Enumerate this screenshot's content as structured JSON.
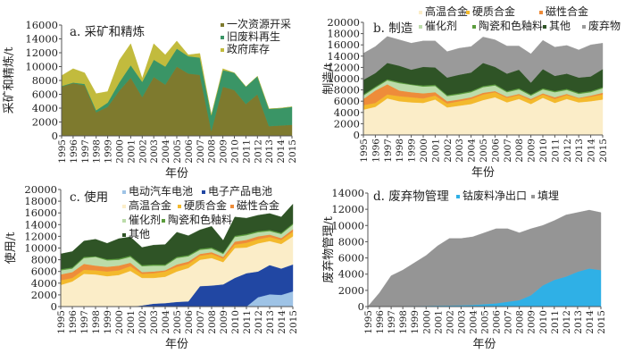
{
  "chart_data": [
    {
      "id": "a",
      "type": "area",
      "stacked": true,
      "title": "a. 采矿和精炼",
      "xlabel": "年份",
      "ylabel": "采矿和精炼/t",
      "ylim": [
        0,
        16000
      ],
      "yticks": [
        "0",
        "2000",
        "4000",
        "6000",
        "8000",
        "10000",
        "12000",
        "14000",
        "16000"
      ],
      "x": [
        "1995",
        "1996",
        "1997",
        "1998",
        "1999",
        "2000",
        "2001",
        "2002",
        "2003",
        "2004",
        "2005",
        "2006",
        "2007",
        "2008",
        "2009",
        "2010",
        "2011",
        "2012",
        "2013",
        "2014",
        "2015"
      ],
      "legend_position": "top-right",
      "series": [
        {
          "name": "一次资源开采",
          "color": "#7e7a2e",
          "values": [
            7100,
            7600,
            7300,
            3400,
            4200,
            6500,
            8400,
            5600,
            8500,
            7400,
            10000,
            9000,
            8800,
            700,
            7100,
            6600,
            4600,
            6000,
            1400,
            1500,
            1600
          ]
        },
        {
          "name": "旧废料再生",
          "color": "#3a9566",
          "values": [
            100,
            100,
            200,
            300,
            600,
            1200,
            1800,
            2200,
            2500,
            2600,
            2600,
            2500,
            2500,
            2300,
            2400,
            2500,
            2500,
            2600,
            2500,
            2500,
            2600
          ]
        },
        {
          "name": "政府库存",
          "color": "#c2bb3d",
          "values": [
            1500,
            2000,
            1600,
            2400,
            1600,
            3200,
            3100,
            500,
            2300,
            1700,
            1100,
            200,
            600,
            0,
            200,
            0,
            0,
            0,
            0,
            0,
            0
          ]
        }
      ]
    },
    {
      "id": "b",
      "type": "area",
      "stacked": true,
      "title": "b. 制造",
      "xlabel": "年份",
      "ylabel": "制造/t",
      "ylim": [
        0,
        20000
      ],
      "yticks": [
        "0",
        "2000",
        "4000",
        "6000",
        "8000",
        "10000",
        "12000",
        "14000",
        "16000",
        "18000",
        "20000"
      ],
      "x": [
        "1995",
        "1996",
        "1997",
        "1998",
        "1999",
        "2000",
        "2001",
        "2002",
        "2003",
        "2004",
        "2005",
        "2006",
        "2007",
        "2008",
        "2009",
        "2010",
        "2011",
        "2012",
        "2013",
        "2014",
        "2015"
      ],
      "legend_position": "top",
      "series": [
        {
          "name": "高温合金",
          "color": "#fbedc8",
          "values": [
            4500,
            5000,
            6500,
            6000,
            5800,
            5700,
            6300,
            4900,
            5200,
            5500,
            6200,
            6700,
            5800,
            6400,
            5500,
            6600,
            5700,
            6400,
            5800,
            6000,
            6300
          ]
        },
        {
          "name": "硬质合金",
          "color": "#f3b92c",
          "values": [
            800,
            700,
            700,
            900,
            900,
            800,
            700,
            700,
            800,
            900,
            1000,
            900,
            800,
            700,
            700,
            600,
            700,
            700,
            700,
            800,
            900
          ]
        },
        {
          "name": "磁性合金",
          "color": "#ee8c3a",
          "values": [
            1100,
            2200,
            1800,
            1000,
            900,
            900,
            600,
            400,
            300,
            300,
            300,
            200,
            200,
            200,
            200,
            200,
            300,
            200,
            100,
            200,
            300
          ]
        },
        {
          "name": "催化剂",
          "color": "#bcdcaa",
          "values": [
            600,
            500,
            700,
            1300,
            1300,
            1200,
            1100,
            900,
            900,
            900,
            1000,
            1000,
            800,
            800,
            600,
            700,
            900,
            700,
            700,
            600,
            800
          ]
        },
        {
          "name": "陶瓷和色釉料",
          "color": "#5a9c3c",
          "values": [
            200,
            200,
            200,
            200,
            100,
            200,
            200,
            200,
            200,
            200,
            200,
            200,
            200,
            200,
            200,
            200,
            200,
            200,
            200,
            200,
            200
          ]
        },
        {
          "name": "其他",
          "color": "#2f5426",
          "values": [
            2600,
            2400,
            2900,
            2900,
            2600,
            3300,
            3100,
            3100,
            3300,
            3300,
            4100,
            3100,
            3100,
            3300,
            2100,
            3400,
            2700,
            2700,
            2700,
            2600,
            3200
          ]
        },
        {
          "name": "废弃物",
          "color": "#9a9a9a",
          "values": [
            4700,
            4700,
            4700,
            4600,
            4700,
            4600,
            4700,
            4600,
            4700,
            4600,
            4600,
            4800,
            4900,
            4200,
            5100,
            5100,
            5100,
            5000,
            4900,
            5600,
            4600
          ]
        }
      ]
    },
    {
      "id": "c",
      "type": "area",
      "stacked": true,
      "title": "c. 使用",
      "xlabel": "年份",
      "ylabel": "使用/t",
      "ylim": [
        0,
        20000
      ],
      "yticks": [
        "0",
        "2000",
        "4000",
        "6000",
        "8000",
        "10000",
        "12000",
        "14000",
        "16000",
        "18000",
        "20000"
      ],
      "x": [
        "1995",
        "1996",
        "1997",
        "1998",
        "1999",
        "2000",
        "2001",
        "2002",
        "2003",
        "2004",
        "2005",
        "2006",
        "2007",
        "2008",
        "2009",
        "2010",
        "2011",
        "2012",
        "2013",
        "2014",
        "2015"
      ],
      "legend_position": "top",
      "series": [
        {
          "name": "电动汽车电池",
          "color": "#9ec3e6",
          "values": [
            0,
            0,
            0,
            0,
            0,
            0,
            0,
            0,
            0,
            0,
            0,
            0,
            0,
            0,
            0,
            0,
            0,
            1600,
            2100,
            2000,
            2600
          ]
        },
        {
          "name": "电子产品电池",
          "color": "#2147a3",
          "values": [
            0,
            0,
            0,
            0,
            0,
            0,
            0,
            200,
            500,
            600,
            800,
            900,
            3500,
            3600,
            3800,
            4900,
            5700,
            4400,
            5000,
            4500,
            4600
          ]
        },
        {
          "name": "高温合金",
          "color": "#fbedc8",
          "values": [
            3700,
            4300,
            5600,
            5500,
            5200,
            5400,
            6100,
            4700,
            4400,
            4500,
            5200,
            5700,
            4500,
            4700,
            3800,
            5100,
            4400,
            4800,
            4100,
            4200,
            4800
          ]
        },
        {
          "name": "硬质合金",
          "color": "#f3b92c",
          "values": [
            800,
            600,
            700,
            700,
            800,
            800,
            800,
            700,
            800,
            900,
            800,
            700,
            700,
            700,
            600,
            600,
            800,
            700,
            700,
            700,
            800
          ]
        },
        {
          "name": "磁性合金",
          "color": "#ee8c3a",
          "values": [
            1000,
            1000,
            1000,
            800,
            800,
            800,
            600,
            300,
            300,
            200,
            400,
            400,
            300,
            300,
            300,
            500,
            500,
            500,
            400,
            300,
            400
          ]
        },
        {
          "name": "催化剂",
          "color": "#bcdcaa",
          "values": [
            700,
            600,
            1000,
            1500,
            1100,
            1000,
            1000,
            1000,
            1000,
            800,
            1100,
            900,
            700,
            600,
            500,
            800,
            800,
            700,
            600,
            700,
            800
          ]
        },
        {
          "name": "陶瓷和色釉料",
          "color": "#5a9c3c",
          "values": [
            200,
            200,
            200,
            100,
            200,
            200,
            200,
            200,
            200,
            200,
            200,
            200,
            200,
            200,
            200,
            200,
            200,
            200,
            200,
            200,
            200
          ]
        },
        {
          "name": "其他",
          "color": "#2f5426",
          "values": [
            2600,
            2700,
            2700,
            2900,
            2700,
            3400,
            3200,
            3000,
            3300,
            3400,
            4200,
            3300,
            3200,
            3600,
            2100,
            3200,
            2700,
            2700,
            2800,
            2700,
            3300
          ]
        }
      ]
    },
    {
      "id": "d",
      "type": "area",
      "stacked": true,
      "title": "d. 废弃物管理",
      "xlabel": "年份",
      "ylabel": "废弃物管理/t",
      "ylim": [
        0,
        14000
      ],
      "yticks": [
        "0",
        "2000",
        "4000",
        "6000",
        "8000",
        "10000",
        "12000",
        "14000"
      ],
      "x": [
        "1995",
        "1996",
        "1997",
        "1998",
        "1999",
        "2000",
        "2001",
        "2002",
        "2003",
        "2004",
        "2005",
        "2006",
        "2007",
        "2008",
        "2009",
        "2010",
        "2011",
        "2012",
        "2013",
        "2014",
        "2015"
      ],
      "legend_position": "top",
      "series": [
        {
          "name": "钴废料净出口",
          "color": "#2fb0e6",
          "values": [
            0,
            20,
            40,
            60,
            80,
            100,
            120,
            140,
            160,
            200,
            300,
            400,
            600,
            800,
            1400,
            2600,
            3300,
            3700,
            4300,
            4700,
            4500
          ]
        },
        {
          "name": "填埋",
          "color": "#959595",
          "values": [
            0,
            1680,
            3760,
            4440,
            5320,
            6200,
            7380,
            8260,
            8240,
            8400,
            8800,
            9200,
            9000,
            8300,
            8200,
            7400,
            7300,
            7600,
            7300,
            7200,
            7100
          ]
        }
      ]
    }
  ]
}
